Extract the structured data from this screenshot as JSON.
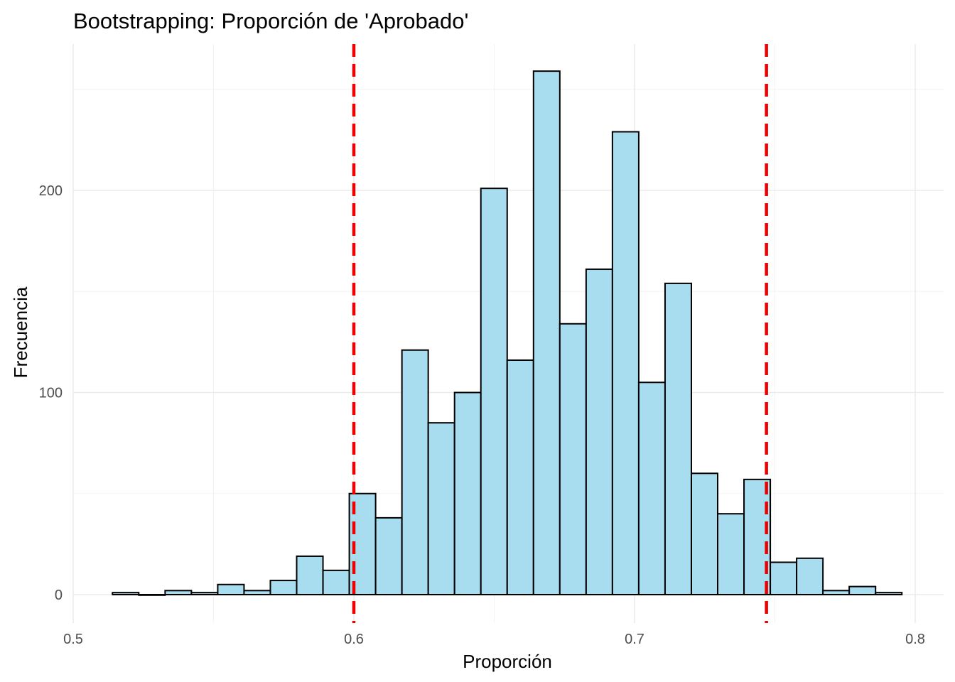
{
  "chart_data": {
    "type": "bar",
    "title": "Bootstrapping: Proporción de 'Aprobado'",
    "xlabel": "Proporción",
    "ylabel": "Frecuencia",
    "xlim": [
      0.5,
      0.81
    ],
    "ylim": [
      -10,
      272
    ],
    "x_ticks": [
      "0.5",
      "0.6",
      "0.7",
      "0.8"
    ],
    "y_ticks": [
      "0",
      "100",
      "200"
    ],
    "grid": true,
    "bin_width": 0.009375,
    "bin_start": 0.514,
    "values": [
      1,
      0,
      2,
      1,
      5,
      2,
      7,
      19,
      12,
      50,
      38,
      121,
      85,
      100,
      201,
      116,
      259,
      134,
      161,
      229,
      105,
      154,
      60,
      40,
      57,
      16,
      18,
      2,
      4,
      1
    ],
    "ci_lines": [
      0.6,
      0.747
    ],
    "bar_color": "#a8dcef",
    "ci_color": "#ee0000"
  }
}
